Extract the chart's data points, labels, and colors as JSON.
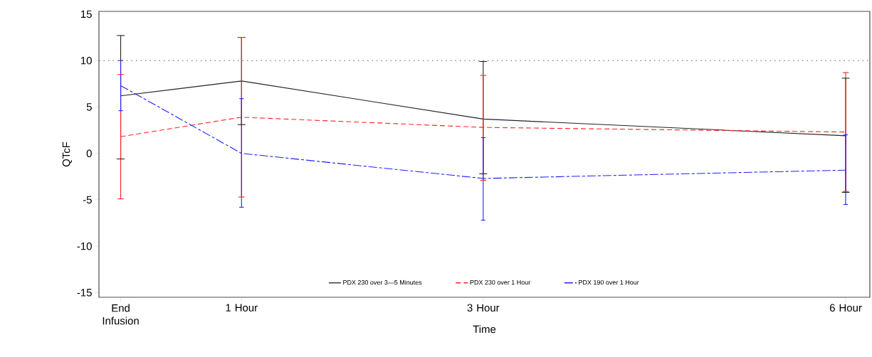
{
  "chart_data": {
    "type": "line",
    "xlabel": "Time",
    "ylabel": "QTcF",
    "x": [
      0,
      1,
      3,
      6
    ],
    "xlim": [
      -0.18,
      6.2
    ],
    "xticks": [
      {
        "value": 0,
        "label": "End Infusion"
      },
      {
        "value": 1,
        "label": "1 Hour"
      },
      {
        "value": 3,
        "label": "3 Hour"
      },
      {
        "value": 6,
        "label": "6 Hour"
      }
    ],
    "ylim": [
      -15.5,
      15.3
    ],
    "yticks": [
      -15,
      -10,
      -5,
      0,
      5,
      10,
      15
    ],
    "series": [
      {
        "name": "PDX 230 over 3—5 Minutes",
        "color": "#222222",
        "line_style": "solid",
        "values": [
          6.2,
          7.8,
          3.7,
          1.9
        ],
        "errors": [
          [
            -0.6,
            12.7
          ],
          [
            3.1,
            12.5
          ],
          [
            -2.2,
            9.9
          ],
          [
            -4.2,
            8.1
          ]
        ]
      },
      {
        "name": "PDX 230 over 1 Hour",
        "color": "#ff2020",
        "line_style": "dashed",
        "values": [
          1.8,
          3.9,
          2.8,
          2.3
        ],
        "errors": [
          [
            -4.9,
            8.5
          ],
          [
            -4.7,
            12.5
          ],
          [
            -2.9,
            8.4
          ],
          [
            -4.1,
            8.7
          ]
        ]
      },
      {
        "name": "PDX 190 over 1 Hour",
        "color": "#2020ff",
        "line_style": "dashed",
        "values": [
          7.3,
          0.0,
          -2.7,
          -1.8
        ],
        "errors": [
          [
            4.6,
            10.0
          ],
          [
            -5.8,
            5.9
          ],
          [
            -7.2,
            1.7
          ],
          [
            -5.5,
            2.0
          ]
        ]
      }
    ],
    "ref_lines": [
      {
        "axis": "y",
        "value": 10,
        "color": "#555555",
        "line_style": "dotted"
      }
    ],
    "legend": "bottom",
    "grid": false,
    "marker": "none"
  }
}
